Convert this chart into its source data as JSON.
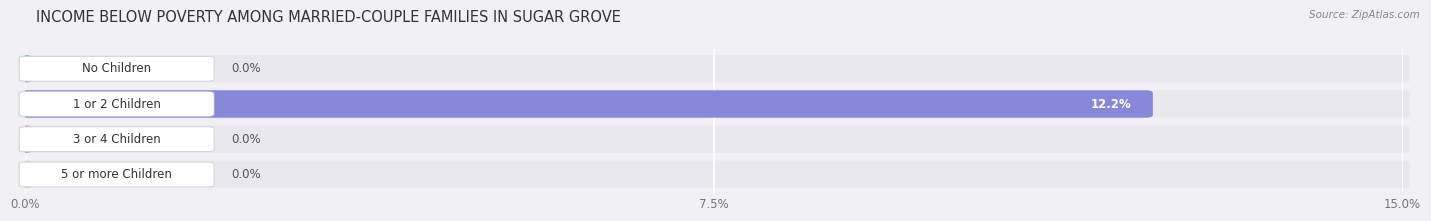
{
  "title": "INCOME BELOW POVERTY AMONG MARRIED-COUPLE FAMILIES IN SUGAR GROVE",
  "source": "Source: ZipAtlas.com",
  "categories": [
    "No Children",
    "1 or 2 Children",
    "3 or 4 Children",
    "5 or more Children"
  ],
  "values": [
    0.0,
    12.2,
    0.0,
    0.0
  ],
  "bar_colors": [
    "#62cece",
    "#8888d8",
    "#f08aaa",
    "#f7c898"
  ],
  "track_color": "#e8e8ee",
  "label_bg_color": "#ffffff",
  "xlim": [
    0,
    15.0
  ],
  "xticks": [
    0.0,
    7.5,
    15.0
  ],
  "xtick_labels": [
    "0.0%",
    "7.5%",
    "15.0%"
  ],
  "background_color": "#f0f0f5",
  "bar_height": 0.62,
  "title_fontsize": 10.5,
  "label_fontsize": 8.5,
  "value_fontsize": 8.5
}
